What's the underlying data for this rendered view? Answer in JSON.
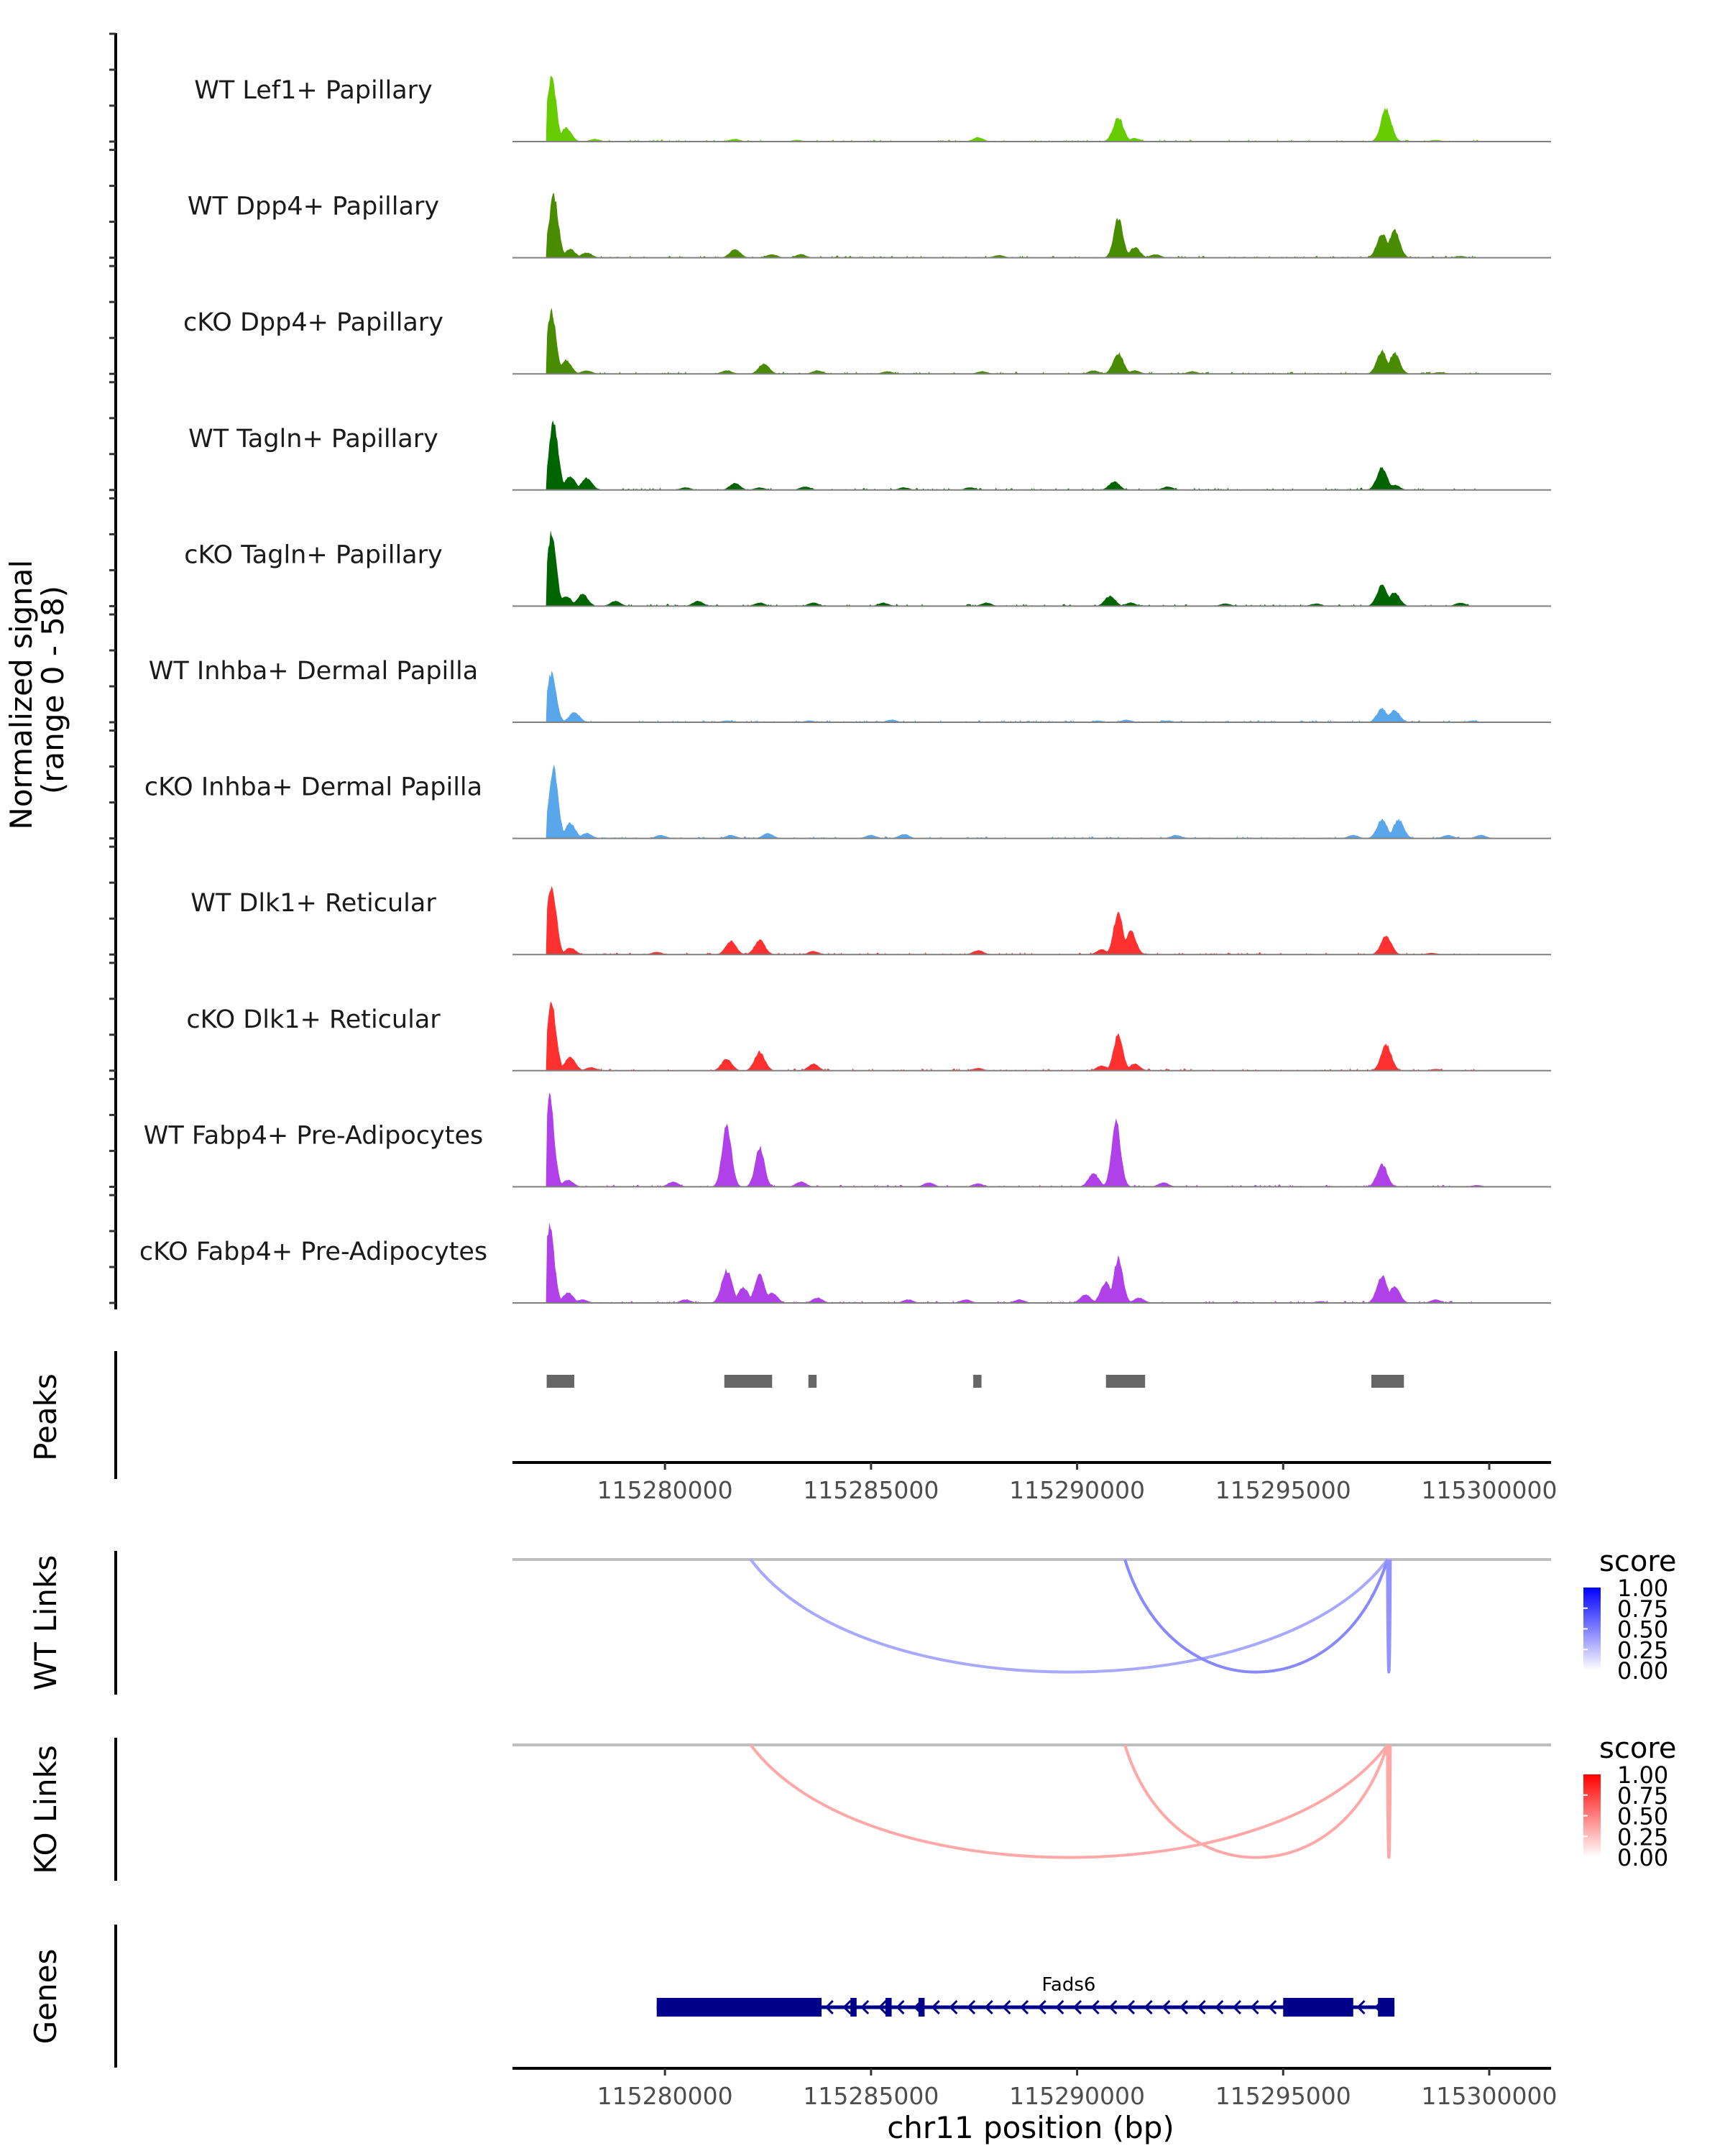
{
  "chart_data": {
    "type": "area",
    "title": "",
    "region": {
      "chrom": "chr11",
      "start": 115276300,
      "end": 115301500
    },
    "xlabel": "chr11 position (bp)",
    "ylabel": "Normalized signal\n(range 0 - 58)",
    "ylabel_lines": [
      "Normalized signal",
      "(range 0 - 58)"
    ],
    "ylim": [
      0,
      58
    ],
    "x_ticks": [
      115280000,
      115285000,
      115290000,
      115295000,
      115300000
    ],
    "x_tick_labels": [
      "115280000",
      "115285000",
      "115290000",
      "115295000",
      "115300000"
    ],
    "coverage_tracks": [
      {
        "name": "WT Lef1+ Papillary",
        "color": "#66CC00",
        "peaks": [
          [
            115277250,
            37
          ],
          [
            115277600,
            8
          ],
          [
            115278300,
            1.5
          ],
          [
            115281700,
            1.5
          ],
          [
            115283200,
            1
          ],
          [
            115287600,
            2.5
          ],
          [
            115291000,
            14
          ],
          [
            115291400,
            2
          ],
          [
            115297500,
            19
          ],
          [
            115298700,
            1
          ]
        ]
      },
      {
        "name": "WT Dpp4+ Papillary",
        "color": "#4A8C00",
        "peaks": [
          [
            115277300,
            36
          ],
          [
            115277700,
            5
          ],
          [
            115278100,
            3
          ],
          [
            115281700,
            5
          ],
          [
            115282600,
            2
          ],
          [
            115283300,
            2
          ],
          [
            115288100,
            1.5
          ],
          [
            115291000,
            23
          ],
          [
            115291400,
            6
          ],
          [
            115291900,
            2
          ],
          [
            115297400,
            14
          ],
          [
            115297700,
            16
          ],
          [
            115299300,
            1
          ]
        ]
      },
      {
        "name": "cKO Dpp4+ Papillary",
        "color": "#4A8C00",
        "peaks": [
          [
            115277250,
            36
          ],
          [
            115277600,
            8
          ],
          [
            115278100,
            2
          ],
          [
            115281500,
            2
          ],
          [
            115282400,
            6
          ],
          [
            115283700,
            2
          ],
          [
            115285400,
            1.5
          ],
          [
            115287700,
            1.5
          ],
          [
            115290400,
            2
          ],
          [
            115291000,
            12
          ],
          [
            115291400,
            2
          ],
          [
            115292800,
            1.5
          ],
          [
            115297400,
            13
          ],
          [
            115297700,
            12
          ],
          [
            115298800,
            1
          ]
        ]
      },
      {
        "name": "WT Tagln+ Papillary",
        "color": "#006400",
        "peaks": [
          [
            115277300,
            39
          ],
          [
            115277700,
            8
          ],
          [
            115278100,
            7
          ],
          [
            115280500,
            1.5
          ],
          [
            115281700,
            4
          ],
          [
            115282300,
            1.5
          ],
          [
            115283400,
            2
          ],
          [
            115285800,
            1.5
          ],
          [
            115287400,
            1.5
          ],
          [
            115290900,
            5
          ],
          [
            115292200,
            2
          ],
          [
            115297400,
            13
          ],
          [
            115297700,
            3
          ]
        ]
      },
      {
        "name": "cKO Tagln+ Papillary",
        "color": "#006400",
        "peaks": [
          [
            115277250,
            42
          ],
          [
            115277600,
            6
          ],
          [
            115278000,
            7
          ],
          [
            115278800,
            3
          ],
          [
            115280800,
            3
          ],
          [
            115282300,
            2
          ],
          [
            115283600,
            2
          ],
          [
            115285300,
            2
          ],
          [
            115287800,
            2
          ],
          [
            115290800,
            6
          ],
          [
            115291300,
            2
          ],
          [
            115293600,
            1.5
          ],
          [
            115295800,
            1.5
          ],
          [
            115297400,
            12
          ],
          [
            115297700,
            8
          ],
          [
            115299300,
            2
          ]
        ]
      },
      {
        "name": "WT Inhba+ Dermal Papilla",
        "color": "#5AA6EB",
        "peaks": [
          [
            115277250,
            29
          ],
          [
            115277800,
            6
          ],
          [
            115281500,
            1
          ],
          [
            115283500,
            1
          ],
          [
            115285500,
            1.5
          ],
          [
            115290500,
            1
          ],
          [
            115291200,
            1.5
          ],
          [
            115292200,
            1
          ],
          [
            115297400,
            8
          ],
          [
            115297700,
            7
          ],
          [
            115299600,
            1
          ]
        ]
      },
      {
        "name": "cKO Inhba+ Dermal Papilla",
        "color": "#5AA6EB",
        "peaks": [
          [
            115277300,
            40
          ],
          [
            115277700,
            9
          ],
          [
            115278100,
            3
          ],
          [
            115279900,
            2
          ],
          [
            115281600,
            2
          ],
          [
            115282500,
            3
          ],
          [
            115285000,
            2
          ],
          [
            115285800,
            2.5
          ],
          [
            115292400,
            2
          ],
          [
            115296700,
            2
          ],
          [
            115297400,
            11
          ],
          [
            115297800,
            11
          ],
          [
            115299000,
            2
          ],
          [
            115299800,
            2
          ]
        ]
      },
      {
        "name": "WT Dlk1+ Reticular",
        "color": "#FF3030",
        "peaks": [
          [
            115277250,
            41
          ],
          [
            115277700,
            4
          ],
          [
            115279800,
            1.5
          ],
          [
            115281600,
            8
          ],
          [
            115282300,
            8.5
          ],
          [
            115283600,
            2
          ],
          [
            115287600,
            2.5
          ],
          [
            115290600,
            3
          ],
          [
            115291000,
            25
          ],
          [
            115291300,
            14
          ],
          [
            115297500,
            11
          ],
          [
            115298600,
            1
          ]
        ]
      },
      {
        "name": "cKO Dlk1+ Reticular",
        "color": "#FF3030",
        "peaks": [
          [
            115277250,
            39
          ],
          [
            115277700,
            8
          ],
          [
            115278200,
            2
          ],
          [
            115281500,
            7
          ],
          [
            115282300,
            11
          ],
          [
            115283600,
            4
          ],
          [
            115287600,
            1.5
          ],
          [
            115290600,
            3
          ],
          [
            115291000,
            21
          ],
          [
            115291400,
            4
          ],
          [
            115297500,
            15
          ],
          [
            115298700,
            1
          ]
        ]
      },
      {
        "name": "WT Fabp4+ Pre-Adipocytes",
        "color": "#B040E8",
        "peaks": [
          [
            115277200,
            52
          ],
          [
            115277650,
            4
          ],
          [
            115280200,
            3
          ],
          [
            115281500,
            37
          ],
          [
            115282300,
            23
          ],
          [
            115283300,
            3
          ],
          [
            115286400,
            2.5
          ],
          [
            115287600,
            2
          ],
          [
            115290400,
            8
          ],
          [
            115290950,
            37
          ],
          [
            115292100,
            2.5
          ],
          [
            115297400,
            13
          ],
          [
            115299700,
            1
          ]
        ]
      },
      {
        "name": "cKO Fabp4+ Pre-Adipocytes",
        "color": "#B040E8",
        "peaks": [
          [
            115277200,
            45
          ],
          [
            115277650,
            6
          ],
          [
            115278000,
            2
          ],
          [
            115280500,
            2
          ],
          [
            115281500,
            19
          ],
          [
            115281900,
            9
          ],
          [
            115282300,
            16
          ],
          [
            115282600,
            6
          ],
          [
            115283700,
            3
          ],
          [
            115285900,
            2
          ],
          [
            115287300,
            2
          ],
          [
            115288600,
            2
          ],
          [
            115290200,
            5
          ],
          [
            115290700,
            12
          ],
          [
            115291000,
            26
          ],
          [
            115291500,
            3
          ],
          [
            115295900,
            1
          ],
          [
            115297400,
            16
          ],
          [
            115297700,
            10
          ],
          [
            115298700,
            2
          ]
        ]
      }
    ],
    "peaks_track": {
      "label": "Peaks",
      "color": "#666666",
      "regions": [
        [
          115277130,
          115277800
        ],
        [
          115281440,
          115282600
        ],
        [
          115283480,
          115283680
        ],
        [
          115287480,
          115287680
        ],
        [
          115290700,
          115291650
        ],
        [
          115297140,
          115297930
        ]
      ]
    },
    "link_tracks": [
      {
        "label": "WT Links",
        "legend_title": "score",
        "low_color": "#FFFFFF",
        "high_color": "#0000FF",
        "links": [
          {
            "start": 115282080,
            "end": 115297530,
            "score": 0.4
          },
          {
            "start": 115291160,
            "end": 115297530,
            "score": 0.55
          },
          {
            "start": 115297530,
            "end": 115297600,
            "score": 0.5
          }
        ]
      },
      {
        "label": "KO Links",
        "legend_title": "score",
        "low_color": "#FFFFFF",
        "high_color": "#FF0000",
        "links": [
          {
            "start": 115282080,
            "end": 115297530,
            "score": 0.4
          },
          {
            "start": 115291160,
            "end": 115297530,
            "score": 0.4
          },
          {
            "start": 115297530,
            "end": 115297600,
            "score": 0.4
          }
        ]
      }
    ],
    "legend_ticks": [
      "1.00",
      "0.75",
      "0.50",
      "0.25",
      "0.00"
    ],
    "genes_track": {
      "label": "Genes",
      "color": "#00008B",
      "gene": {
        "name": "Fads6",
        "strand": "-",
        "start": 115279800,
        "end": 115297700,
        "exons": [
          [
            115279800,
            115283800
          ],
          [
            115284500,
            115284650
          ],
          [
            115285350,
            115285500
          ],
          [
            115286150,
            115286300
          ],
          [
            115295000,
            115296700
          ],
          [
            115297300,
            115297700
          ]
        ]
      }
    }
  }
}
